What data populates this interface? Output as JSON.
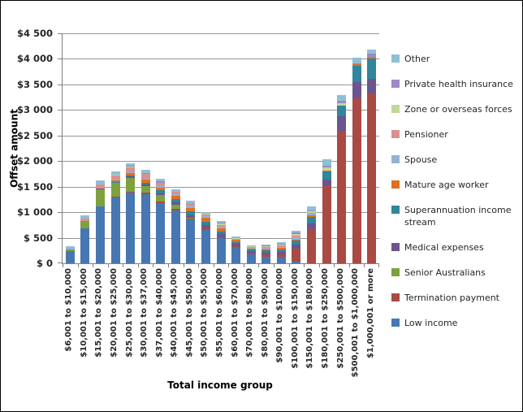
{
  "chart_data": {
    "type": "bar",
    "stacked": true,
    "xlabel": "Total income group",
    "ylabel": "Offset amount",
    "ylim": [
      0,
      4500
    ],
    "ytick_interval": 500,
    "ytick_labels_bottom_to_top": [
      "$ 0",
      "$ 500",
      "$1 000",
      "$1 500",
      "$2 000",
      "$2 500",
      "$3 000",
      "$3 500",
      "$4 000",
      "$4 500"
    ],
    "grid": true,
    "grid_color": "#969696",
    "axis_color": "#808080",
    "legend_position": "right",
    "legend_top_to_bottom": [
      "Other",
      "Private health insurance",
      "Zone or overseas forces",
      "Pensioner",
      "Spouse",
      "Mature age worker",
      "Superannuation income stream",
      "Medical expenses",
      "Senior Australians",
      "Termination payment",
      "Low income"
    ],
    "categories": [
      "$6,001 to $10,000",
      "$10,001 to $15,000",
      "$15,001 to $20,000",
      "$20,001 to $25,000",
      "$25,001 to $30,000",
      "$30,001 to $37,000",
      "$37,001 to $40,000",
      "$40,001 to $45,000",
      "$45,001 to $50,000",
      "$50,001 to $55,000",
      "$55,001 to $60,000",
      "$60,001 to $70,000",
      "$70,001 to $80,000",
      "$80,001 to $90,000",
      "$90,001 to $100,000",
      "$100,001 to $150,000",
      "$150,001 to $180,000",
      "$180,001 to $250,000",
      "$250,001 to $500,000",
      "$500,001 to $1,000,000",
      "$1,000,001 or more"
    ],
    "series_bottom_to_top": [
      {
        "name": "Low income",
        "color": "#4677B2",
        "values": [
          235,
          690,
          1115,
          1285,
          1380,
          1350,
          1170,
          1030,
          855,
          660,
          490,
          320,
          170,
          130,
          120,
          30,
          0,
          0,
          0,
          0,
          0
        ]
      },
      {
        "name": "Termination payment",
        "color": "#A94A44",
        "values": [
          0,
          0,
          5,
          15,
          20,
          30,
          40,
          35,
          25,
          35,
          20,
          10,
          35,
          40,
          55,
          250,
          650,
          1525,
          2600,
          3235,
          3320
        ]
      },
      {
        "name": "Senior Australians",
        "color": "#7EA13F",
        "values": [
          35,
          120,
          320,
          270,
          270,
          130,
          125,
          85,
          15,
          0,
          0,
          0,
          0,
          0,
          0,
          0,
          0,
          0,
          0,
          0,
          0
        ]
      },
      {
        "name": "Medical expenses",
        "color": "#6A5590",
        "values": [
          0,
          5,
          25,
          10,
          30,
          40,
          35,
          40,
          45,
          50,
          55,
          45,
          35,
          45,
          55,
          80,
          130,
          115,
          280,
          305,
          285
        ]
      },
      {
        "name": "Superannuation income stream",
        "color": "#31859C",
        "values": [
          0,
          0,
          0,
          10,
          15,
          30,
          55,
          65,
          75,
          65,
          60,
          45,
          30,
          35,
          45,
          80,
          130,
          160,
          200,
          330,
          395
        ]
      },
      {
        "name": "Mature age worker",
        "color": "#E0701F",
        "values": [
          0,
          5,
          0,
          40,
          55,
          55,
          55,
          70,
          75,
          75,
          55,
          40,
          20,
          25,
          25,
          25,
          25,
          10,
          0,
          30,
          30
        ]
      },
      {
        "name": "Spouse",
        "color": "#94B2D6",
        "values": [
          30,
          10,
          0,
          10,
          15,
          20,
          35,
          35,
          45,
          40,
          40,
          15,
          15,
          20,
          25,
          40,
          35,
          0,
          0,
          0,
          0
        ]
      },
      {
        "name": "Pensioner",
        "color": "#D9918F",
        "values": [
          0,
          40,
          80,
          85,
          100,
          90,
          55,
          35,
          35,
          30,
          35,
          10,
          15,
          20,
          20,
          35,
          20,
          0,
          0,
          0,
          0
        ]
      },
      {
        "name": "Zone or overseas forces",
        "color": "#C2D69A",
        "values": [
          0,
          0,
          0,
          5,
          10,
          10,
          10,
          0,
          5,
          10,
          25,
          5,
          10,
          15,
          25,
          35,
          25,
          65,
          50,
          0,
          0
        ]
      },
      {
        "name": "Private health insurance",
        "color": "#9C8AC4",
        "values": [
          0,
          10,
          5,
          10,
          15,
          15,
          20,
          10,
          10,
          10,
          10,
          10,
          5,
          15,
          20,
          30,
          25,
          40,
          45,
          20,
          70
        ]
      },
      {
        "name": "Other",
        "color": "#8FBFD4",
        "values": [
          30,
          60,
          80,
          60,
          50,
          60,
          55,
          40,
          45,
          35,
          35,
          20,
          15,
          25,
          30,
          40,
          70,
          125,
          110,
          110,
          80
        ]
      }
    ]
  }
}
